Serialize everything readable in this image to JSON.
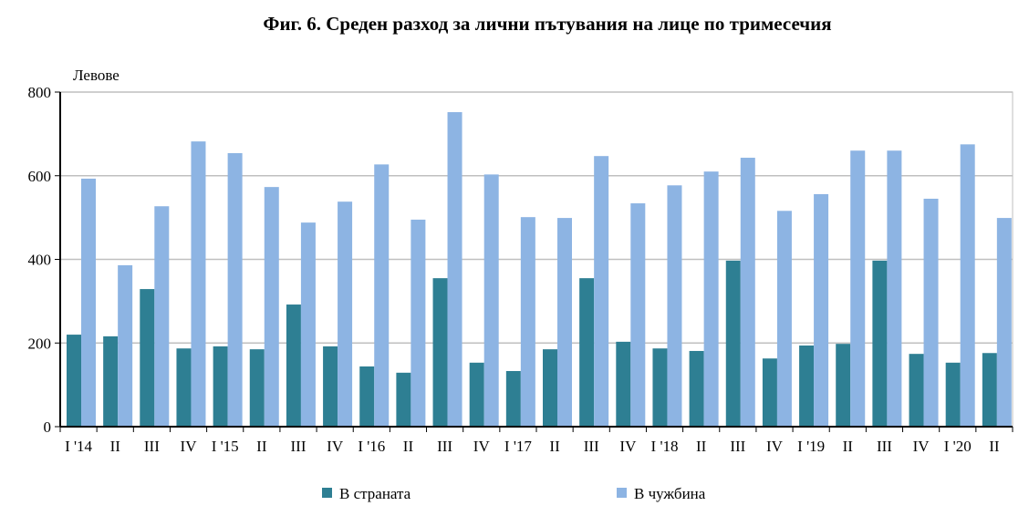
{
  "chart_data": {
    "type": "bar",
    "title": "Фиг. 6. Среден разход за лични пътувания на лице по тримесечия",
    "ylabel": "Левове",
    "xlabel": "",
    "ylim": [
      0,
      800
    ],
    "yticks": [
      0,
      200,
      400,
      600,
      800
    ],
    "grid": true,
    "legend_placement": "bottom",
    "categories": [
      "I '14",
      "II",
      "III",
      "IV",
      "I '15",
      "II",
      "III",
      "IV",
      "I '16",
      "II",
      "III",
      "IV",
      "I '17",
      "II",
      "III",
      "IV",
      "I '18",
      "II",
      "III",
      "IV",
      "I '19",
      "II",
      "III",
      "IV",
      "I '20",
      "II"
    ],
    "series": [
      {
        "name": "В страната",
        "color": "#2e7f93",
        "values": [
          220,
          216,
          329,
          187,
          192,
          185,
          292,
          192,
          144,
          129,
          355,
          153,
          133,
          185,
          355,
          203,
          187,
          181,
          397,
          163,
          194,
          198,
          397,
          174,
          153,
          176
        ]
      },
      {
        "name": "В чужбина",
        "color": "#8db4e3",
        "values": [
          593,
          386,
          527,
          682,
          654,
          573,
          488,
          538,
          627,
          495,
          752,
          603,
          501,
          499,
          647,
          534,
          577,
          610,
          643,
          516,
          556,
          660,
          660,
          545,
          675,
          499
        ]
      }
    ]
  }
}
